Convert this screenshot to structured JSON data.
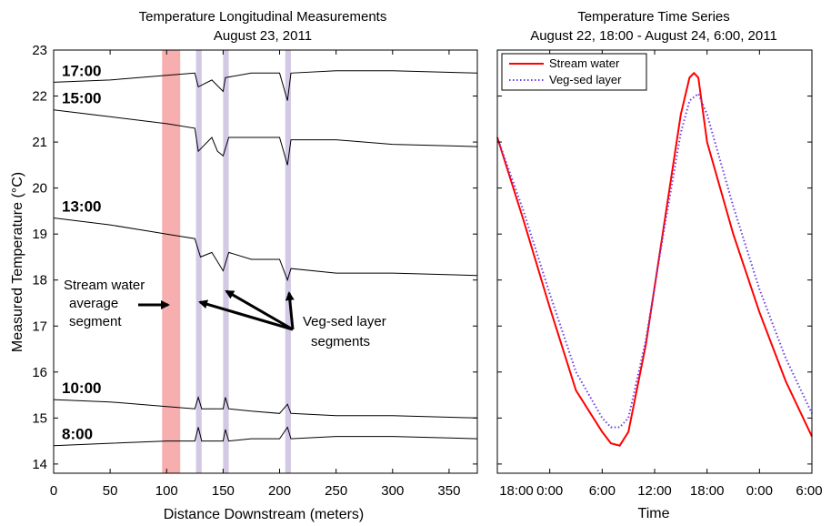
{
  "chart_data": [
    {
      "type": "line",
      "title": "Temperature Longitudinal Measurements",
      "subtitle": "August 23, 2011",
      "xlabel": "Distance Downstream (meters)",
      "ylabel": "Measured Temperature (°C)",
      "xlim": [
        0,
        375
      ],
      "ylim": [
        13.8,
        23
      ],
      "xticks": [
        0,
        50,
        100,
        150,
        200,
        250,
        300,
        350
      ],
      "yticks": [
        14,
        15,
        16,
        17,
        18,
        19,
        20,
        21,
        22,
        23
      ],
      "grid": false,
      "highlight_bands": [
        {
          "name": "Stream water average segment",
          "x": [
            96,
            112
          ],
          "color": "#f4a0a0"
        },
        {
          "name": "Veg-sed layer segment",
          "x": [
            126,
            131
          ],
          "color": "#cbbfe0"
        },
        {
          "name": "Veg-sed layer segment",
          "x": [
            150,
            155
          ],
          "color": "#cbbfe0"
        },
        {
          "name": "Veg-sed layer segment",
          "x": [
            205,
            210
          ],
          "color": "#cbbfe0"
        }
      ],
      "series": [
        {
          "name": "17:00",
          "label": "17:00",
          "x": [
            0,
            50,
            100,
            125,
            128,
            140,
            150,
            152,
            175,
            200,
            207,
            210,
            250,
            300,
            375
          ],
          "y": [
            22.3,
            22.35,
            22.45,
            22.5,
            22.2,
            22.35,
            22.1,
            22.4,
            22.5,
            22.5,
            21.9,
            22.5,
            22.55,
            22.55,
            22.5
          ]
        },
        {
          "name": "15:00",
          "label": "15:00",
          "x": [
            0,
            50,
            100,
            125,
            128,
            140,
            145,
            150,
            155,
            175,
            200,
            207,
            210,
            250,
            300,
            375
          ],
          "y": [
            21.7,
            21.55,
            21.4,
            21.3,
            20.8,
            21.1,
            20.8,
            20.7,
            21.1,
            21.1,
            21.1,
            20.5,
            21.05,
            21.05,
            20.95,
            20.9
          ]
        },
        {
          "name": "13:00",
          "label": "13:00",
          "x": [
            0,
            50,
            100,
            125,
            130,
            140,
            150,
            155,
            175,
            200,
            207,
            210,
            250,
            300,
            375
          ],
          "y": [
            19.35,
            19.2,
            19.0,
            18.9,
            18.5,
            18.6,
            18.2,
            18.6,
            18.45,
            18.45,
            18.0,
            18.25,
            18.15,
            18.15,
            18.1
          ]
        },
        {
          "name": "10:00",
          "label": "10:00",
          "x": [
            0,
            50,
            100,
            125,
            128,
            131,
            150,
            152,
            155,
            175,
            200,
            207,
            210,
            250,
            300,
            375
          ],
          "y": [
            15.4,
            15.35,
            15.25,
            15.2,
            15.45,
            15.2,
            15.2,
            15.45,
            15.2,
            15.15,
            15.1,
            15.3,
            15.1,
            15.05,
            15.05,
            15.0
          ]
        },
        {
          "name": "8:00",
          "label": "8:00",
          "x": [
            0,
            50,
            100,
            125,
            128,
            131,
            150,
            152,
            155,
            175,
            200,
            207,
            210,
            250,
            300,
            375
          ],
          "y": [
            14.4,
            14.45,
            14.5,
            14.5,
            14.8,
            14.5,
            14.5,
            14.75,
            14.5,
            14.55,
            14.55,
            14.8,
            14.55,
            14.6,
            14.6,
            14.55
          ]
        }
      ],
      "annotations": [
        {
          "text_lines": [
            "Stream water",
            "average",
            "segment"
          ]
        },
        {
          "text_lines": [
            "Veg-sed layer",
            "segments"
          ]
        }
      ]
    },
    {
      "type": "line",
      "title": "Temperature Time Series",
      "subtitle": "August 22, 18:00 - August 24, 6:00, 2011",
      "xlabel": "Time",
      "ylabel": "",
      "xlim": [
        0,
        36
      ],
      "ylim": [
        13.8,
        23
      ],
      "xticks": [
        0,
        6,
        12,
        18,
        24,
        30,
        36
      ],
      "xticklabels": [
        "18:00",
        "0:00",
        "6:00",
        "12:00",
        "18:00",
        "0:00",
        "6:00"
      ],
      "grid": false,
      "legend": {
        "position": "top-left",
        "entries": [
          "Stream water",
          "Veg-sed layer"
        ]
      },
      "series": [
        {
          "name": "Stream water",
          "color": "#ff0000",
          "style": "solid",
          "x": [
            0,
            3,
            6,
            9,
            12,
            13,
            14,
            15,
            17,
            19,
            21,
            22,
            22.5,
            23,
            24,
            27,
            30,
            33,
            36
          ],
          "y": [
            21.1,
            19.3,
            17.4,
            15.6,
            14.7,
            14.45,
            14.4,
            14.7,
            16.6,
            19.1,
            21.6,
            22.4,
            22.5,
            22.4,
            21.0,
            19.0,
            17.3,
            15.8,
            14.6
          ]
        },
        {
          "name": "Veg-sed layer",
          "color": "#6a3de8",
          "style": "dotted",
          "x": [
            0,
            3,
            6,
            9,
            12,
            13,
            14,
            15,
            17,
            19,
            21,
            22,
            23,
            24,
            27,
            30,
            33,
            36
          ],
          "y": [
            21.1,
            19.5,
            17.7,
            16.0,
            15.0,
            14.8,
            14.8,
            15.0,
            16.7,
            19.0,
            21.2,
            21.9,
            22.05,
            21.6,
            19.6,
            17.8,
            16.3,
            15.1
          ]
        }
      ]
    }
  ]
}
